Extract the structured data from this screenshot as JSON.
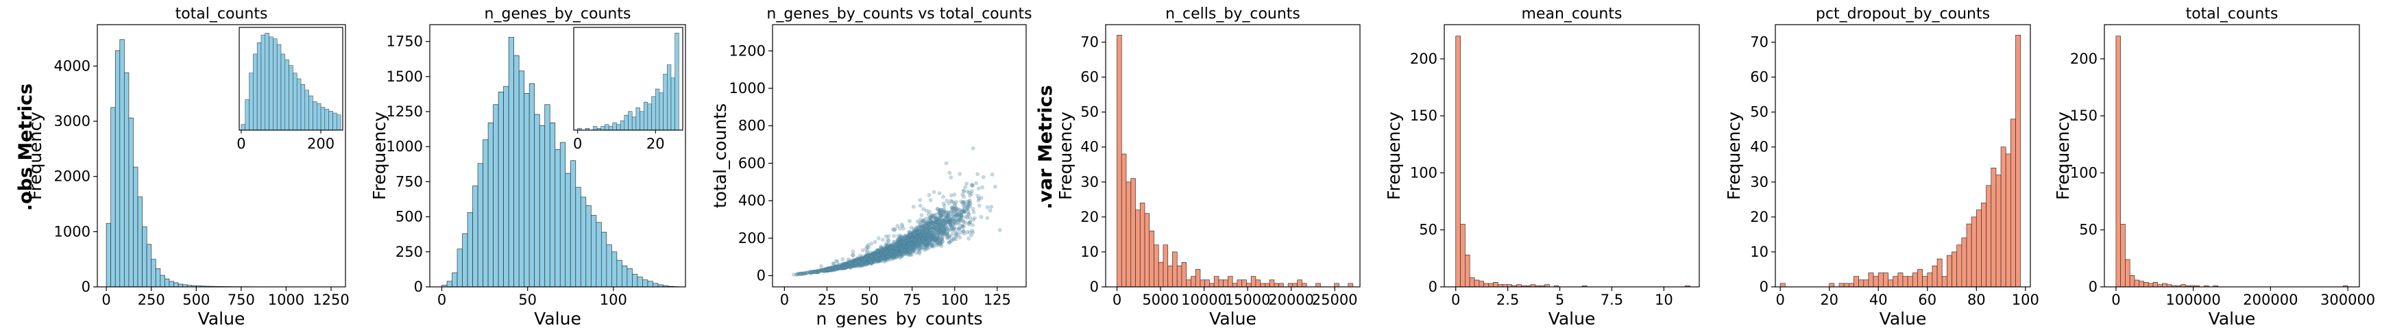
{
  "row_labels": {
    "obs": ".obs Metrics",
    "var": ".var Metrics"
  },
  "colors": {
    "obs": "#8ecde6",
    "var": "#f4987c",
    "scatter": "#5b93ad",
    "edge": "#333333"
  },
  "chart_data": [
    {
      "type": "bar",
      "title": "total_counts",
      "xlabel": "Value",
      "ylabel": "Frequency",
      "xlim": [
        -50,
        1330
      ],
      "ylim": [
        0,
        4750
      ],
      "xticks": [
        0,
        250,
        500,
        750,
        1000,
        1250
      ],
      "yticks": [
        0,
        1000,
        2000,
        3000,
        4000
      ],
      "bin_start": 0,
      "bin_width": 25,
      "values": [
        1150,
        3250,
        4280,
        4480,
        3880,
        3060,
        2170,
        1630,
        1090,
        770,
        500,
        330,
        210,
        145,
        100,
        75,
        50,
        40,
        28,
        22,
        18,
        15,
        12,
        10,
        8,
        7,
        6,
        5,
        4,
        4,
        3,
        3,
        2,
        2,
        2,
        2,
        1,
        1,
        1,
        1,
        1,
        1,
        1,
        1,
        1,
        1,
        1,
        1,
        1,
        1,
        1
      ],
      "inset": {
        "xticks": [
          0,
          200
        ],
        "xlim": [
          -5,
          255
        ],
        "ymax": 540,
        "bin_start": 0,
        "bin_width": 10,
        "values": [
          30,
          160,
          300,
          400,
          460,
          500,
          510,
          490,
          480,
          450,
          400,
          370,
          340,
          300,
          270,
          240,
          210,
          180,
          150,
          140,
          120,
          110,
          100,
          90,
          80
        ]
      }
    },
    {
      "type": "bar",
      "title": "n_genes_by_counts",
      "xlabel": "Value",
      "ylabel": "Frequency",
      "xlim": [
        -7,
        142
      ],
      "ylim": [
        0,
        1870
      ],
      "xticks": [
        0,
        50,
        100
      ],
      "yticks": [
        0,
        250,
        500,
        750,
        1000,
        1250,
        1500,
        1750
      ],
      "bin_start": 0,
      "bin_width": 3,
      "values": [
        12,
        40,
        100,
        270,
        380,
        530,
        720,
        880,
        1050,
        1170,
        1300,
        1390,
        1430,
        1780,
        1650,
        1540,
        1380,
        1450,
        1230,
        1150,
        1300,
        1170,
        980,
        1030,
        810,
        900,
        710,
        640,
        580,
        510,
        460,
        390,
        300,
        250,
        190,
        150,
        130,
        90,
        70,
        50,
        40,
        25,
        15,
        8,
        4,
        2
      ],
      "inset": {
        "xticks": [
          0,
          20
        ],
        "xlim": [
          -1,
          27
        ],
        "ymax": 55,
        "bin_start": 0,
        "bin_width": 1,
        "values": [
          1,
          0,
          1,
          0,
          2,
          1,
          2,
          3,
          2,
          4,
          3,
          5,
          8,
          10,
          7,
          12,
          10,
          15,
          14,
          18,
          22,
          20,
          30,
          35,
          28,
          52
        ]
      }
    },
    {
      "type": "scatter",
      "title": "n_genes_by_counts vs total_counts",
      "xlabel": "n_genes_by_counts",
      "ylabel": "total_counts",
      "xlim": [
        -7,
        142
      ],
      "ylim": [
        -60,
        1340
      ],
      "xticks": [
        0,
        25,
        50,
        75,
        100,
        125
      ],
      "yticks": [
        0,
        200,
        400,
        600,
        800,
        1000,
        1200
      ],
      "trend": {
        "a": 0.9,
        "b": 0.0055,
        "power": 2
      }
    },
    {
      "type": "bar",
      "title": "n_cells_by_counts",
      "xlabel": "Value",
      "ylabel": "Frequency",
      "xlim": [
        -1300,
        27900
      ],
      "ylim": [
        0,
        75
      ],
      "xticks": [
        0,
        5000,
        10000,
        15000,
        20000,
        25000
      ],
      "yticks": [
        0,
        10,
        20,
        30,
        40,
        50,
        60,
        70
      ],
      "bin_start": 0,
      "bin_width": 531,
      "values": [
        72,
        38,
        30,
        31,
        22,
        24,
        21,
        16,
        12,
        7,
        12,
        6,
        10,
        6,
        7,
        2,
        3,
        5,
        2,
        2,
        1,
        3,
        2,
        2,
        3,
        1,
        2,
        2,
        1,
        3,
        2,
        1,
        1,
        2,
        1,
        1,
        0,
        1,
        1,
        2,
        1,
        0,
        0,
        1,
        0,
        0,
        0,
        1,
        0,
        0,
        1
      ]
    },
    {
      "type": "bar",
      "title": "mean_counts",
      "xlabel": "Value",
      "ylabel": "Frequency",
      "xlim": [
        -0.55,
        11.7
      ],
      "ylim": [
        0,
        230
      ],
      "xticks": [
        0.0,
        2.5,
        5.0,
        7.5,
        10.0
      ],
      "yticks": [
        0,
        50,
        100,
        150,
        200
      ],
      "bin_start": 0,
      "bin_width": 0.225,
      "values": [
        220,
        55,
        28,
        8,
        6,
        5,
        3,
        3,
        4,
        2,
        2,
        2,
        1,
        2,
        1,
        1,
        2,
        1,
        1,
        2,
        0,
        1,
        0,
        0,
        0,
        0,
        0,
        1,
        0,
        0,
        0,
        0,
        0,
        0,
        0,
        0,
        0,
        0,
        0,
        0,
        0,
        0,
        0,
        0,
        0,
        0,
        0,
        0,
        0,
        1
      ]
    },
    {
      "type": "bar",
      "title": "pct_dropout_by_counts",
      "xlabel": "Value",
      "ylabel": "Frequency",
      "xlim": [
        -2,
        102
      ],
      "ylim": [
        0,
        75
      ],
      "xticks": [
        0,
        20,
        40,
        60,
        80,
        100
      ],
      "yticks": [
        0,
        10,
        20,
        30,
        40,
        50,
        60,
        70
      ],
      "bin_start": 0,
      "bin_width": 2,
      "values": [
        1,
        0,
        0,
        0,
        0,
        0,
        0,
        0,
        0,
        0,
        1,
        0,
        1,
        1,
        1,
        3,
        2,
        2,
        4,
        3,
        4,
        4,
        2,
        3,
        4,
        3,
        3,
        4,
        5,
        3,
        4,
        6,
        8,
        3,
        9,
        10,
        12,
        14,
        18,
        20,
        22,
        24,
        29,
        34,
        32,
        40,
        38,
        48,
        72
      ]
    },
    {
      "type": "bar",
      "title": "total_counts",
      "xlabel": "Value",
      "ylabel": "Frequency",
      "xlim": [
        -15000,
        315000
      ],
      "ylim": [
        0,
        230
      ],
      "xticks": [
        0,
        100000,
        200000,
        300000
      ],
      "yticks": [
        0,
        50,
        100,
        150,
        200
      ],
      "bin_start": 0,
      "bin_width": 6000,
      "values": [
        220,
        55,
        24,
        10,
        6,
        5,
        4,
        3,
        4,
        2,
        3,
        2,
        1,
        1,
        2,
        1,
        1,
        1,
        0,
        1,
        0,
        1,
        0,
        0,
        0,
        0,
        0,
        0,
        0,
        0,
        0,
        0,
        0,
        0,
        0,
        0,
        0,
        0,
        0,
        0,
        0,
        0,
        0,
        0,
        0,
        0,
        0,
        0,
        0,
        1
      ]
    }
  ]
}
